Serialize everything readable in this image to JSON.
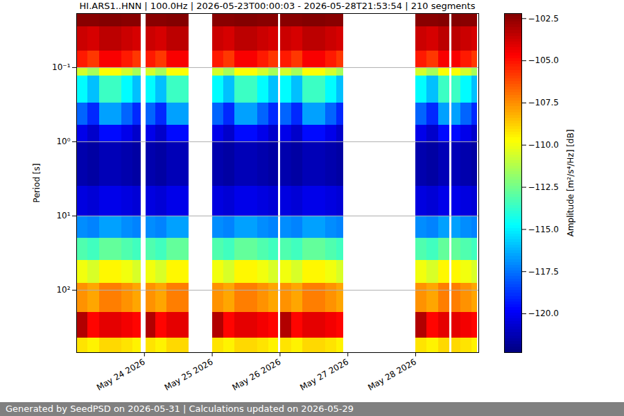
{
  "chart_data": {
    "type": "heatmap",
    "title": "HI.ARS1..HNN | 100.0Hz | 2026-05-23T00:00:03 - 2026-05-28T21:53:54 | 210 segments",
    "y_label": "Period [s]",
    "caption": "Generated by SeedPSD on 2026-05-31 | Calculations updated on 2026-05-29",
    "log": "y",
    "grid": "y",
    "xlim": [
      "2026-05-23T00:00",
      "2026-05-28T22:20"
    ],
    "xticks": [
      {
        "value": "2026-05-24T00:00",
        "label": "May 24 2026"
      },
      {
        "value": "2026-05-25T00:00",
        "label": "May 25 2026"
      },
      {
        "value": "2026-05-26T00:00",
        "label": "May 26 2026"
      },
      {
        "value": "2026-05-27T00:00",
        "label": "May 27 2026"
      },
      {
        "value": "2026-05-28T00:00",
        "label": "May 28 2026"
      }
    ],
    "ylim": [
      0.0187,
      693
    ],
    "yticks": [
      {
        "value": 0.1,
        "label": "10⁻¹"
      },
      {
        "value": 1,
        "label": "10⁰"
      },
      {
        "value": 10,
        "label": "10¹"
      },
      {
        "value": 100,
        "label": "10²"
      }
    ],
    "time_edges": [
      "2026-05-23T00:00",
      "2026-05-23T04:00",
      "2026-05-23T08:00",
      "2026-05-23T12:00",
      "2026-05-23T16:00",
      "2026-05-23T20:00",
      "2026-05-23T22:50",
      "2026-05-24T00:30",
      "2026-05-24T04:00",
      "2026-05-24T08:00",
      "2026-05-24T12:00",
      "2026-05-24T15:50",
      "2026-05-25T00:00",
      "2026-05-25T04:00",
      "2026-05-25T08:00",
      "2026-05-25T12:00",
      "2026-05-25T16:00",
      "2026-05-25T20:00",
      "2026-05-25T23:30",
      "2026-05-26T00:15",
      "2026-05-26T04:00",
      "2026-05-26T08:00",
      "2026-05-26T12:00",
      "2026-05-26T16:00",
      "2026-05-26T20:00",
      "2026-05-26T22:30",
      "2026-05-28T00:00",
      "2026-05-28T04:00",
      "2026-05-28T08:00",
      "2026-05-28T12:00",
      "2026-05-28T12:45",
      "2026-05-28T16:00",
      "2026-05-28T20:00",
      "2026-05-28T21:54"
    ],
    "period_edges": [
      0.0187,
      0.028,
      0.06,
      0.1,
      0.13,
      0.3,
      0.6,
      1,
      4,
      10,
      20,
      40,
      80,
      200,
      440,
      693
    ],
    "values": [
      [
        -102.4,
        -102.4,
        -102.3,
        -102.3,
        -102.4,
        -102.4,
        null,
        -102.4,
        -102.4,
        -102.3,
        -102.3,
        null,
        -102.4,
        -102.4,
        -102.3,
        -102.3,
        -102.4,
        -102.4,
        null,
        -102.4,
        -102.4,
        -102.3,
        -102.3,
        -102.4,
        -102.4,
        null,
        -102.4,
        -102.4,
        -102.3,
        null,
        -102.3,
        -102.4,
        -102.4
      ],
      [
        -103.7,
        -103.9,
        -103.4,
        -103.4,
        -103.7,
        -103.9,
        null,
        -103.7,
        -103.9,
        -103.4,
        -103.4,
        null,
        -103.7,
        -103.9,
        -103.4,
        -103.4,
        -103.7,
        -103.9,
        null,
        -103.7,
        -103.9,
        -103.4,
        -103.4,
        -103.7,
        -103.9,
        null,
        -103.7,
        -103.9,
        -103.4,
        null,
        -103.4,
        -103.7,
        -103.9
      ],
      [
        -105.2,
        -105.8,
        -104.6,
        -104.6,
        -105.2,
        -105.8,
        null,
        -105.2,
        -105.8,
        -104.6,
        -104.6,
        null,
        -105.2,
        -105.8,
        -104.6,
        -104.6,
        -105.2,
        -105.8,
        null,
        -105.2,
        -105.8,
        -104.6,
        -104.6,
        -105.2,
        -105.8,
        null,
        -105.2,
        -105.8,
        -104.6,
        null,
        -104.6,
        -105.2,
        -105.8
      ],
      [
        -110.6,
        -111.5,
        -109.8,
        -109.8,
        -110.6,
        -111.5,
        null,
        -110.6,
        -111.5,
        -109.8,
        -109.8,
        null,
        -110.6,
        -111.5,
        -109.8,
        -109.8,
        -110.6,
        -111.5,
        null,
        -110.6,
        -111.5,
        -109.8,
        -109.8,
        -110.6,
        -111.5,
        null,
        -110.6,
        -111.5,
        -109.8,
        null,
        -109.8,
        -110.6,
        -111.5
      ],
      [
        -114.8,
        -116,
        -113.6,
        -113.6,
        -114.8,
        -116,
        null,
        -114.8,
        -116,
        -113.6,
        -113.6,
        null,
        -114.8,
        -116,
        -113.6,
        -113.6,
        -114.8,
        -116,
        null,
        -114.8,
        -116,
        -113.6,
        -113.6,
        -114.8,
        -116,
        null,
        -114.8,
        -116,
        -113.6,
        null,
        -113.6,
        -114.8,
        -116
      ],
      [
        -117.8,
        -119,
        -116.6,
        -116.6,
        -117.8,
        -119,
        null,
        -117.8,
        -119,
        -116.6,
        -116.6,
        null,
        -117.8,
        -119,
        -116.6,
        -116.6,
        -117.8,
        -119,
        null,
        -117.8,
        -119,
        -116.6,
        -116.6,
        -117.8,
        -119,
        null,
        -117.8,
        -119,
        -116.6,
        null,
        -116.6,
        -117.8,
        -119
      ],
      [
        -120.2,
        -120.8,
        -119.6,
        -119.6,
        -120.2,
        -120.8,
        null,
        -120.2,
        -120.8,
        -119.6,
        -119.6,
        null,
        -120.2,
        -120.8,
        -119.6,
        -119.6,
        -120.2,
        -120.8,
        null,
        -120.2,
        -120.8,
        -119.6,
        -119.6,
        -120.2,
        -120.8,
        null,
        -120.2,
        -120.8,
        -119.6,
        null,
        -119.6,
        -120.2,
        -120.8
      ],
      [
        -121.4,
        -121.6,
        -121.2,
        -121.2,
        -121.4,
        -121.6,
        null,
        -121.4,
        -121.6,
        -121.2,
        -121.2,
        null,
        -121.4,
        -121.6,
        -121.2,
        -121.2,
        -121.4,
        -121.6,
        null,
        -121.4,
        -121.6,
        -121.2,
        -121.2,
        -121.4,
        -121.6,
        null,
        -121.4,
        -121.6,
        -121.2,
        null,
        -121.2,
        -121.4,
        -121.6
      ],
      [
        -120.4,
        -120.6,
        -120.2,
        -120.2,
        -120.4,
        -120.6,
        null,
        -120.4,
        -120.6,
        -120.2,
        -120.2,
        null,
        -120.4,
        -120.6,
        -120.2,
        -120.2,
        -120.4,
        -120.6,
        null,
        -120.4,
        -120.6,
        -120.2,
        -120.2,
        -120.4,
        -120.6,
        null,
        -120.4,
        -120.6,
        -120.2,
        null,
        -120.2,
        -120.4,
        -120.6
      ],
      [
        -117,
        -117.2,
        -116.6,
        -116.6,
        -117,
        -117.2,
        null,
        -117,
        -117.2,
        -116.6,
        -116.6,
        null,
        -117,
        -117.2,
        -116.6,
        -116.6,
        -117,
        -117.2,
        null,
        -117,
        -117.2,
        -116.6,
        -116.6,
        -117,
        -117.2,
        null,
        -117,
        -117.2,
        -116.6,
        null,
        -116.6,
        -117,
        -117.2
      ],
      [
        -113.2,
        -113.5,
        -112.8,
        -112.8,
        -113.2,
        -113.5,
        null,
        -113.2,
        -113.5,
        -112.8,
        -112.8,
        null,
        -113.2,
        -113.5,
        -112.8,
        -112.8,
        -113.2,
        -113.5,
        null,
        -113.2,
        -113.5,
        -112.8,
        -112.8,
        -113.2,
        -113.5,
        null,
        -113.2,
        -113.5,
        -112.8,
        null,
        -112.8,
        -113.2,
        -113.5
      ],
      [
        -110,
        -110.5,
        -109.6,
        -109.6,
        -110,
        -110.5,
        null,
        -110,
        -110.5,
        -109.6,
        -109.6,
        null,
        -110,
        -110.5,
        -109.6,
        -109.6,
        -110,
        -110.5,
        null,
        -110,
        -110.5,
        -109.6,
        -109.6,
        -110,
        -110.5,
        null,
        -110,
        -110.5,
        -109.6,
        null,
        -109.6,
        -110,
        -110.5
      ],
      [
        -107.6,
        -108,
        -107.2,
        -107.2,
        -107.6,
        -108,
        null,
        -107.6,
        -108,
        -107.2,
        -107.2,
        null,
        -107.6,
        -108,
        -107.2,
        -107.2,
        -107.6,
        -108,
        null,
        -107.6,
        -108,
        -107.2,
        -107.2,
        -107.6,
        -108,
        null,
        -107.6,
        -108,
        -107.2,
        null,
        -107.2,
        -107.6,
        -108
      ],
      [
        -103.2,
        -104.8,
        -104.2,
        -104.2,
        -104.5,
        -104.8,
        null,
        -103.2,
        -104.8,
        -104.2,
        -104.2,
        null,
        -103.2,
        -104.8,
        -104.2,
        -104.2,
        -104.5,
        -104.8,
        null,
        -103.2,
        -104.8,
        -104.2,
        -104.2,
        -104.5,
        -104.8,
        null,
        -103.2,
        -104.8,
        -104.2,
        null,
        -104.2,
        -104.5,
        -104.8
      ],
      [
        -109.2,
        -109.5,
        -109,
        -109,
        -109.2,
        -109.5,
        null,
        -109.2,
        -109.5,
        -109,
        -109,
        null,
        -109.2,
        -109.5,
        -109,
        -109,
        -109.2,
        -109.5,
        null,
        -109.2,
        -109.5,
        -109,
        -109,
        -109.2,
        -109.5,
        null,
        -109.2,
        -109.5,
        -109,
        null,
        -109,
        -109.2,
        -109.5
      ]
    ],
    "colorbar": {
      "label": "Amplitude [m²/s⁴/Hz] [dB]",
      "range": [
        -122.3,
        -102.2
      ],
      "ticks": [
        {
          "value": -102.5,
          "label": "−102.5"
        },
        {
          "value": -105,
          "label": "−105.0"
        },
        {
          "value": -107.5,
          "label": "−107.5"
        },
        {
          "value": -110,
          "label": "−110.0"
        },
        {
          "value": -112.5,
          "label": "−112.5"
        },
        {
          "value": -115,
          "label": "−115.0"
        },
        {
          "value": -117.5,
          "label": "−117.5"
        },
        {
          "value": -120,
          "label": "−120.0"
        }
      ]
    }
  }
}
